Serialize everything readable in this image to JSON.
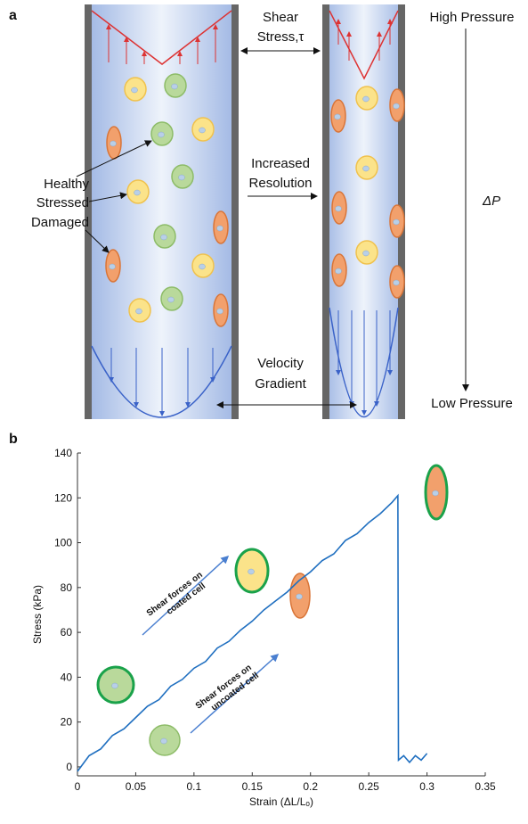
{
  "panel_a": {
    "label": "a",
    "shear": [
      "Shear",
      "Stress,τ"
    ],
    "high": "High Pressure",
    "delta": "ΔP",
    "low": "Low Pressure",
    "resolution": [
      "Increased",
      "Resolution"
    ],
    "cells": [
      "Healthy",
      "Stressed",
      "Damaged"
    ],
    "velocity": [
      "Velocity",
      "Gradient"
    ]
  },
  "panel_b_label": "b",
  "chart_data": {
    "type": "line",
    "xlabel": "Strain (ΔL/Lₒ)",
    "ylabel": "Stress (kPa)",
    "x": [
      0,
      0.01,
      0.02,
      0.03,
      0.04,
      0.05,
      0.06,
      0.07,
      0.08,
      0.09,
      0.1,
      0.11,
      0.12,
      0.13,
      0.14,
      0.15,
      0.16,
      0.17,
      0.18,
      0.19,
      0.2,
      0.21,
      0.22,
      0.23,
      0.24,
      0.25,
      0.26,
      0.27,
      0.275,
      0.2755,
      0.28,
      0.285,
      0.29,
      0.295,
      0.3
    ],
    "series": [
      {
        "color": "#1f6fc0",
        "values": [
          -2,
          5,
          8,
          14,
          17,
          22,
          27,
          30,
          36,
          39,
          44,
          47,
          53,
          56,
          61,
          65,
          70,
          74,
          78,
          83,
          87,
          92,
          95,
          101,
          104,
          109,
          113,
          118,
          121,
          3,
          5,
          2,
          5,
          3,
          6
        ]
      }
    ],
    "xlim": [
      0,
      0.35
    ],
    "xticks": [
      0,
      0.05,
      0.1,
      0.15,
      0.2,
      0.25,
      0.3,
      0.35
    ],
    "ylim": [
      -4,
      140
    ],
    "yticks": [
      0,
      20,
      40,
      60,
      80,
      100,
      120,
      140
    ],
    "annotations": [
      [
        "Shear forces on",
        "coated cell"
      ],
      [
        "Shear forces on",
        "uncoated cell"
      ]
    ]
  }
}
